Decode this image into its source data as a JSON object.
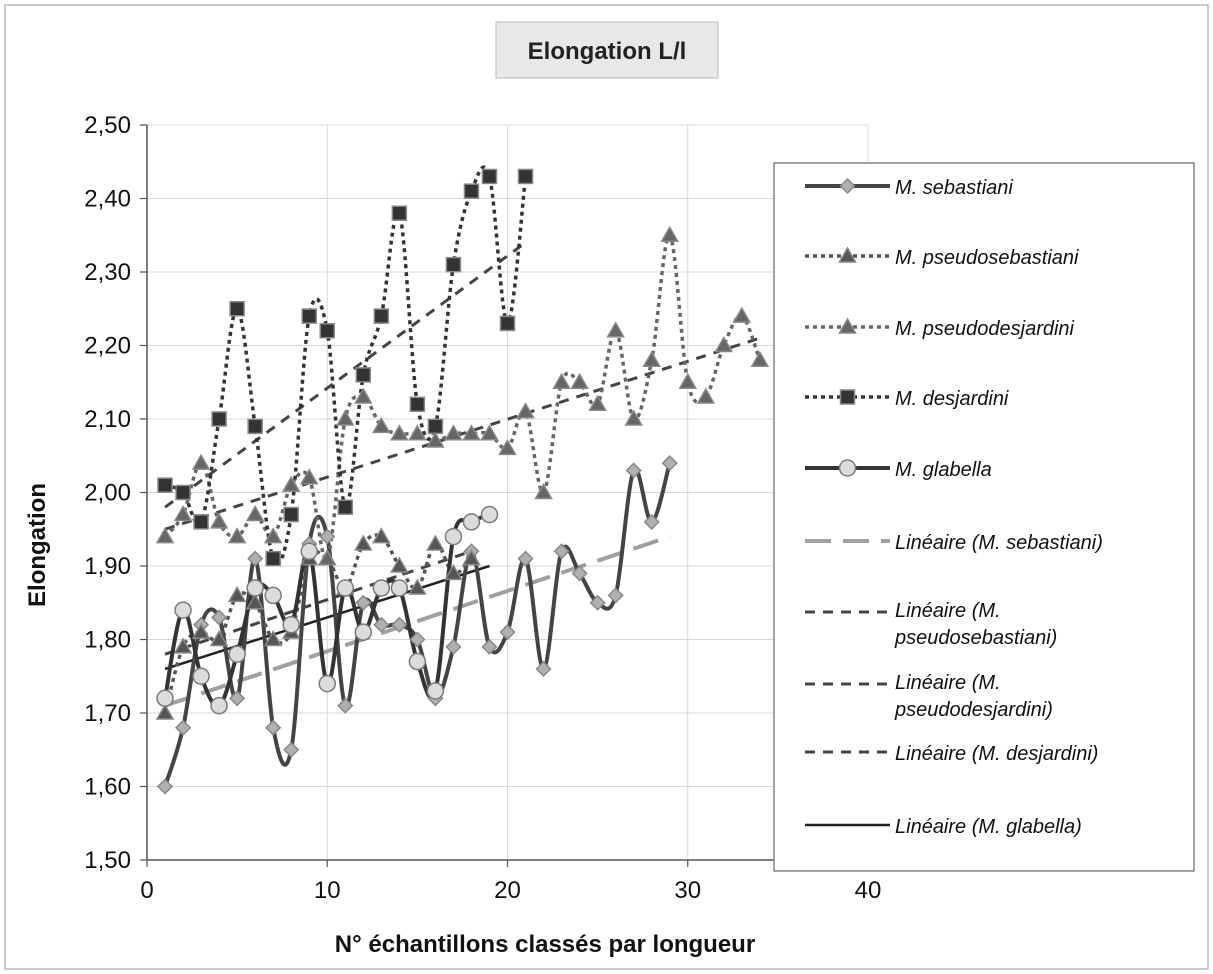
{
  "chart_data": {
    "type": "line",
    "title": "Elongation L/l",
    "xlabel": "N° échantillons classés par longueur",
    "ylabel": "Elongation",
    "xlim": [
      0,
      40
    ],
    "ylim": [
      1.5,
      2.5
    ],
    "x_ticks": [
      "0",
      "10",
      "20",
      "30",
      "40"
    ],
    "y_ticks": [
      "1,50",
      "1,60",
      "1,70",
      "1,80",
      "1,90",
      "2,00",
      "2,10",
      "2,20",
      "2,30",
      "2,40",
      "2,50"
    ],
    "grid": true,
    "legend_position": "right",
    "series": [
      {
        "name": "M. sebastiani",
        "marker": "diamond",
        "line": "solid-dark",
        "color": "#444444",
        "x": [
          1,
          2,
          3,
          4,
          5,
          6,
          7,
          8,
          9,
          10,
          11,
          12,
          13,
          14,
          15,
          16,
          17,
          18,
          19,
          20,
          21,
          22,
          23,
          24,
          25,
          26,
          27,
          28,
          29
        ],
        "y": [
          1.6,
          1.68,
          1.82,
          1.83,
          1.72,
          1.91,
          1.68,
          1.65,
          1.93,
          1.94,
          1.71,
          1.85,
          1.82,
          1.82,
          1.8,
          1.72,
          1.79,
          1.92,
          1.79,
          1.81,
          1.91,
          1.76,
          1.92,
          1.89,
          1.85,
          1.86,
          2.03,
          1.96,
          2.04
        ]
      },
      {
        "name": "M. pseudosebastiani",
        "marker": "triangle",
        "line": "dotted",
        "color": "#555555",
        "x": [
          1,
          2,
          3,
          4,
          5,
          6,
          7,
          8,
          9,
          10,
          11,
          12,
          13,
          14,
          15,
          16,
          17,
          18
        ],
        "y": [
          1.7,
          1.79,
          1.81,
          1.8,
          1.86,
          1.85,
          1.8,
          1.81,
          1.91,
          1.91,
          1.87,
          1.93,
          1.94,
          1.9,
          1.87,
          1.93,
          1.89,
          1.91
        ]
      },
      {
        "name": "M. pseudodesjardini",
        "marker": "triangle",
        "line": "dotted",
        "color": "#666666",
        "x": [
          1,
          2,
          3,
          4,
          5,
          6,
          7,
          8,
          9,
          10,
          11,
          12,
          13,
          14,
          15,
          16,
          17,
          18,
          19,
          20,
          21,
          22,
          23,
          24,
          25,
          26,
          27,
          28,
          29,
          30,
          31,
          32,
          33,
          34
        ],
        "y": [
          1.94,
          1.97,
          2.04,
          1.96,
          1.94,
          1.97,
          1.94,
          2.01,
          2.02,
          1.91,
          2.1,
          2.13,
          2.09,
          2.08,
          2.08,
          2.07,
          2.08,
          2.08,
          2.08,
          2.06,
          2.11,
          2.0,
          2.15,
          2.15,
          2.12,
          2.22,
          2.1,
          2.18,
          2.35,
          2.15,
          2.13,
          2.2,
          2.24,
          2.18
        ]
      },
      {
        "name": "M. desjardini",
        "marker": "square",
        "line": "dotted",
        "color": "#333333",
        "x": [
          1,
          2,
          3,
          4,
          5,
          6,
          7,
          8,
          9,
          10,
          11,
          12,
          13,
          14,
          15,
          16,
          17,
          18,
          19,
          20,
          21
        ],
        "y": [
          2.01,
          2.0,
          1.96,
          2.1,
          2.25,
          2.09,
          1.91,
          1.97,
          2.24,
          2.22,
          1.98,
          2.16,
          2.24,
          2.38,
          2.12,
          2.09,
          2.31,
          2.41,
          2.43,
          2.23,
          2.43
        ]
      },
      {
        "name": "M. glabella",
        "marker": "circle",
        "line": "solid-dark",
        "color": "#333333",
        "x": [
          1,
          2,
          3,
          4,
          5,
          6,
          7,
          8,
          9,
          10,
          11,
          12,
          13,
          14,
          15,
          16,
          17,
          18,
          19
        ],
        "y": [
          1.72,
          1.84,
          1.75,
          1.71,
          1.78,
          1.87,
          1.86,
          1.82,
          1.92,
          1.74,
          1.87,
          1.81,
          1.87,
          1.87,
          1.77,
          1.73,
          1.94,
          1.96,
          1.97
        ]
      }
    ],
    "trendlines": [
      {
        "name": "Linéaire (M. sebastiani)",
        "style": "long-dash-gray",
        "color": "#a0a0a0",
        "x": [
          1,
          29
        ],
        "y": [
          1.71,
          1.94
        ]
      },
      {
        "name": "Linéaire (M. pseudosebastiani)",
        "style": "short-dash",
        "color": "#444444",
        "x": [
          1,
          18
        ],
        "y": [
          1.78,
          1.92
        ]
      },
      {
        "name": "Linéaire (M. pseudodesjardini)",
        "style": "short-dash",
        "color": "#444444",
        "x": [
          1,
          34
        ],
        "y": [
          1.95,
          2.21
        ]
      },
      {
        "name": "Linéaire (M. desjardini)",
        "style": "short-dash",
        "color": "#444444",
        "x": [
          1,
          21
        ],
        "y": [
          1.98,
          2.34
        ]
      },
      {
        "name": "Linéaire (M. glabella)",
        "style": "solid",
        "color": "#222222",
        "x": [
          1,
          19
        ],
        "y": [
          1.76,
          1.9
        ]
      }
    ],
    "legend": [
      {
        "lines": [
          "M. sebastiani"
        ],
        "ref": "series.0"
      },
      {
        "lines": [
          "M. pseudosebastiani"
        ],
        "ref": "series.1"
      },
      {
        "lines": [
          "M. pseudodesjardini"
        ],
        "ref": "series.2"
      },
      {
        "lines": [
          "M. desjardini"
        ],
        "ref": "series.3"
      },
      {
        "lines": [
          "M. glabella"
        ],
        "ref": "series.4"
      },
      {
        "lines": [
          "Linéaire (M. sebastiani)"
        ],
        "ref": "trendlines.0"
      },
      {
        "lines": [
          "Linéaire (M.",
          "pseudosebastiani)"
        ],
        "ref": "trendlines.1"
      },
      {
        "lines": [
          "Linéaire (M.",
          "pseudodesjardini)"
        ],
        "ref": "trendlines.2"
      },
      {
        "lines": [
          "Linéaire (M. desjardini)"
        ],
        "ref": "trendlines.3"
      },
      {
        "lines": [
          "Linéaire (M. glabella)"
        ],
        "ref": "trendlines.4"
      }
    ]
  }
}
